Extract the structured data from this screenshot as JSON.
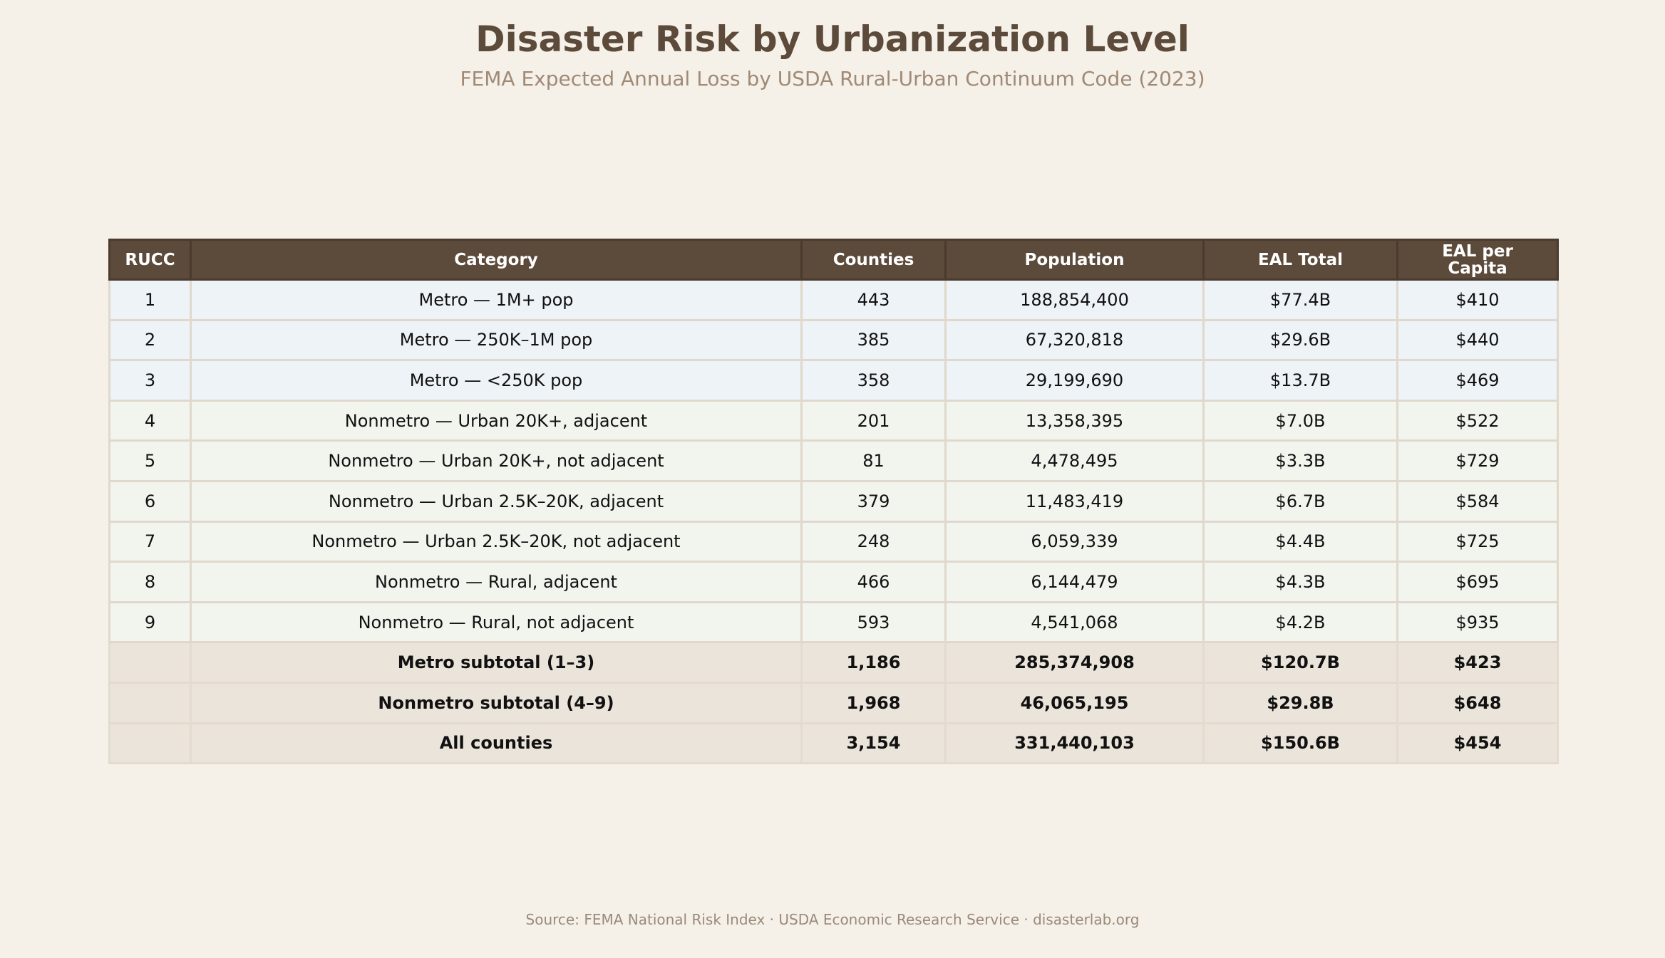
{
  "title": "Disaster Risk by Urbanization Level",
  "subtitle": "FEMA Expected Annual Loss by USDA Rural-Urban Continuum Code (2023)",
  "source": "Source: FEMA National Risk Index · USDA Economic Research Service  ·  disasterlab.org",
  "colors": {
    "header_bg": "#5c4a3a",
    "metro_row": "#eef3f8",
    "nonmetro_row": "#f1f5ee",
    "subtotal_row": "#ebe4da",
    "background": "#f5f0e8"
  },
  "chart_data": {
    "type": "table",
    "title": "Disaster Risk by Urbanization Level",
    "subtitle": "FEMA Expected Annual Loss by USDA Rural-Urban Continuum Code (2023)",
    "columns": [
      "RUCC",
      "Category",
      "Counties",
      "Population",
      "EAL Total",
      "EAL per Capita"
    ],
    "rows": [
      {
        "group": "metro",
        "cells": [
          "1",
          "Metro — 1M+ pop",
          "443",
          "188,854,400",
          "$77.4B",
          "$410"
        ]
      },
      {
        "group": "metro",
        "cells": [
          "2",
          "Metro — 250K–1M pop",
          "385",
          "67,320,818",
          "$29.6B",
          "$440"
        ]
      },
      {
        "group": "metro",
        "cells": [
          "3",
          "Metro — <250K pop",
          "358",
          "29,199,690",
          "$13.7B",
          "$469"
        ]
      },
      {
        "group": "nonmetro",
        "cells": [
          "4",
          "Nonmetro — Urban 20K+, adjacent",
          "201",
          "13,358,395",
          "$7.0B",
          "$522"
        ]
      },
      {
        "group": "nonmetro",
        "cells": [
          "5",
          "Nonmetro — Urban 20K+, not adjacent",
          "81",
          "4,478,495",
          "$3.3B",
          "$729"
        ]
      },
      {
        "group": "nonmetro",
        "cells": [
          "6",
          "Nonmetro — Urban 2.5K–20K, adjacent",
          "379",
          "11,483,419",
          "$6.7B",
          "$584"
        ]
      },
      {
        "group": "nonmetro",
        "cells": [
          "7",
          "Nonmetro — Urban 2.5K–20K, not adjacent",
          "248",
          "6,059,339",
          "$4.4B",
          "$725"
        ]
      },
      {
        "group": "nonmetro",
        "cells": [
          "8",
          "Nonmetro — Rural, adjacent",
          "466",
          "6,144,479",
          "$4.3B",
          "$695"
        ]
      },
      {
        "group": "nonmetro",
        "cells": [
          "9",
          "Nonmetro — Rural, not adjacent",
          "593",
          "4,541,068",
          "$4.2B",
          "$935"
        ]
      },
      {
        "group": "subtotal",
        "cells": [
          "",
          "Metro subtotal (1–3)",
          "1,186",
          "285,374,908",
          "$120.7B",
          "$423"
        ]
      },
      {
        "group": "subtotal",
        "cells": [
          "",
          "Nonmetro subtotal (4–9)",
          "1,968",
          "46,065,195",
          "$29.8B",
          "$648"
        ]
      },
      {
        "group": "subtotal",
        "cells": [
          "",
          "All counties",
          "3,154",
          "331,440,103",
          "$150.6B",
          "$454"
        ]
      }
    ]
  }
}
